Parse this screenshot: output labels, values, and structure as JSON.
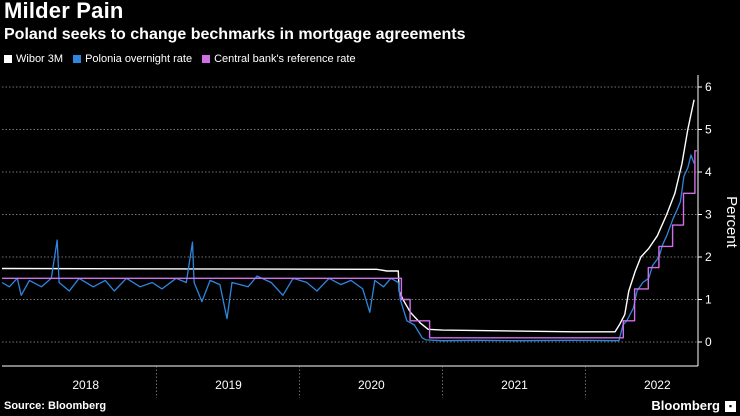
{
  "header": {
    "title": "Milder Pain",
    "subtitle": "Poland seeks to change bechmarks in mortgage agreements"
  },
  "footer": {
    "source": "Source: Bloomberg",
    "brand": "Bloomberg"
  },
  "chart_data": {
    "type": "line",
    "title": "Milder Pain",
    "subtitle": "Poland seeks to change bechmarks in mortgage agreements",
    "xlabel": "",
    "ylabel": "Percent",
    "ylim": [
      0,
      6
    ],
    "yticks": [
      0,
      1,
      2,
      3,
      4,
      5,
      6
    ],
    "xlim": [
      "2017-06-01",
      "2022-04-15"
    ],
    "xticks": [
      {
        "label": "2018",
        "center": "2018-01-01"
      },
      {
        "label": "2019",
        "center": "2019-01-01"
      },
      {
        "label": "2020",
        "center": "2020-01-01"
      },
      {
        "label": "2021",
        "center": "2021-01-01"
      },
      {
        "label": "2022",
        "center": "2022-01-01"
      }
    ],
    "year_boundaries": [
      "2018-07-01",
      "2019-07-01",
      "2020-07-01",
      "2021-07-01"
    ],
    "grid": true,
    "legend": "top-left",
    "series": [
      {
        "name": "Wibor 3M",
        "color": "#ffffff",
        "points": [
          [
            "2017-06-01",
            1.73
          ],
          [
            "2019-12-15",
            1.71
          ],
          [
            "2020-01-15",
            1.71
          ],
          [
            "2020-02-10",
            1.67
          ],
          [
            "2020-03-10",
            1.67
          ],
          [
            "2020-03-12",
            1.2
          ],
          [
            "2020-03-22",
            1.0
          ],
          [
            "2020-04-10",
            0.7
          ],
          [
            "2020-05-05",
            0.45
          ],
          [
            "2020-05-25",
            0.3
          ],
          [
            "2020-07-01",
            0.28
          ],
          [
            "2021-06-01",
            0.24
          ],
          [
            "2021-09-15",
            0.24
          ],
          [
            "2021-09-27",
            0.42
          ],
          [
            "2021-10-10",
            0.65
          ],
          [
            "2021-10-20",
            1.2
          ],
          [
            "2021-11-05",
            1.65
          ],
          [
            "2021-11-20",
            2.0
          ],
          [
            "2021-12-10",
            2.2
          ],
          [
            "2022-01-01",
            2.5
          ],
          [
            "2022-01-25",
            3.0
          ],
          [
            "2022-02-15",
            3.5
          ],
          [
            "2022-03-05",
            4.2
          ],
          [
            "2022-03-20",
            5.0
          ],
          [
            "2022-04-05",
            5.7
          ]
        ]
      },
      {
        "name": "Polonia overnight rate",
        "color": "#2e86de",
        "points": [
          [
            "2017-06-01",
            1.4
          ],
          [
            "2017-06-20",
            1.3
          ],
          [
            "2017-07-10",
            1.5
          ],
          [
            "2017-07-20",
            1.1
          ],
          [
            "2017-08-10",
            1.45
          ],
          [
            "2017-09-10",
            1.3
          ],
          [
            "2017-10-05",
            1.5
          ],
          [
            "2017-10-20",
            2.4
          ],
          [
            "2017-10-25",
            1.4
          ],
          [
            "2017-11-20",
            1.2
          ],
          [
            "2017-12-15",
            1.5
          ],
          [
            "2018-01-20",
            1.3
          ],
          [
            "2018-02-20",
            1.45
          ],
          [
            "2018-03-15",
            1.2
          ],
          [
            "2018-04-15",
            1.5
          ],
          [
            "2018-05-20",
            1.3
          ],
          [
            "2018-06-20",
            1.4
          ],
          [
            "2018-07-15",
            1.25
          ],
          [
            "2018-08-20",
            1.5
          ],
          [
            "2018-09-15",
            1.4
          ],
          [
            "2018-10-01",
            2.35
          ],
          [
            "2018-10-05",
            1.4
          ],
          [
            "2018-10-25",
            0.95
          ],
          [
            "2018-11-15",
            1.45
          ],
          [
            "2018-12-10",
            1.35
          ],
          [
            "2018-12-28",
            0.55
          ],
          [
            "2019-01-10",
            1.4
          ],
          [
            "2019-02-20",
            1.3
          ],
          [
            "2019-03-15",
            1.55
          ],
          [
            "2019-04-20",
            1.4
          ],
          [
            "2019-05-20",
            1.1
          ],
          [
            "2019-06-15",
            1.5
          ],
          [
            "2019-07-20",
            1.4
          ],
          [
            "2019-08-15",
            1.2
          ],
          [
            "2019-09-15",
            1.5
          ],
          [
            "2019-10-15",
            1.35
          ],
          [
            "2019-11-10",
            1.45
          ],
          [
            "2019-12-10",
            1.25
          ],
          [
            "2019-12-28",
            0.7
          ],
          [
            "2020-01-10",
            1.45
          ],
          [
            "2020-02-01",
            1.3
          ],
          [
            "2020-02-20",
            1.5
          ],
          [
            "2020-03-10",
            1.4
          ],
          [
            "2020-03-15",
            1.0
          ],
          [
            "2020-04-01",
            0.5
          ],
          [
            "2020-04-20",
            0.4
          ],
          [
            "2020-05-10",
            0.1
          ],
          [
            "2020-05-20",
            0.05
          ],
          [
            "2020-07-01",
            0.03
          ],
          [
            "2020-10-01",
            0.04
          ],
          [
            "2021-01-01",
            0.03
          ],
          [
            "2021-06-01",
            0.04
          ],
          [
            "2021-09-25",
            0.03
          ],
          [
            "2021-10-05",
            0.4
          ],
          [
            "2021-10-15",
            0.5
          ],
          [
            "2021-11-01",
            0.8
          ],
          [
            "2021-11-10",
            1.2
          ],
          [
            "2021-11-25",
            1.4
          ],
          [
            "2021-12-10",
            1.5
          ],
          [
            "2021-12-20",
            1.8
          ],
          [
            "2022-01-05",
            2.0
          ],
          [
            "2022-01-15",
            2.3
          ],
          [
            "2022-01-25",
            2.5
          ],
          [
            "2022-02-10",
            2.9
          ],
          [
            "2022-02-20",
            3.1
          ],
          [
            "2022-03-01",
            3.3
          ],
          [
            "2022-03-10",
            3.9
          ],
          [
            "2022-03-20",
            4.1
          ],
          [
            "2022-03-28",
            4.4
          ],
          [
            "2022-04-05",
            4.2
          ]
        ]
      },
      {
        "name": "Central bank's reference rate",
        "color": "#d070e8",
        "points": [
          [
            "2017-06-01",
            1.5
          ],
          [
            "2020-03-18",
            1.5
          ],
          [
            "2020-03-18",
            1.0
          ],
          [
            "2020-04-09",
            1.0
          ],
          [
            "2020-04-09",
            0.5
          ],
          [
            "2020-05-29",
            0.5
          ],
          [
            "2020-05-29",
            0.1
          ],
          [
            "2021-10-06",
            0.1
          ],
          [
            "2021-10-06",
            0.5
          ],
          [
            "2021-11-04",
            0.5
          ],
          [
            "2021-11-04",
            1.25
          ],
          [
            "2021-12-09",
            1.25
          ],
          [
            "2021-12-09",
            1.75
          ],
          [
            "2022-01-05",
            1.75
          ],
          [
            "2022-01-05",
            2.25
          ],
          [
            "2022-02-09",
            2.25
          ],
          [
            "2022-02-09",
            2.75
          ],
          [
            "2022-03-09",
            2.75
          ],
          [
            "2022-03-09",
            3.5
          ],
          [
            "2022-04-07",
            3.5
          ],
          [
            "2022-04-07",
            4.5
          ],
          [
            "2022-04-12",
            4.5
          ]
        ]
      }
    ]
  }
}
